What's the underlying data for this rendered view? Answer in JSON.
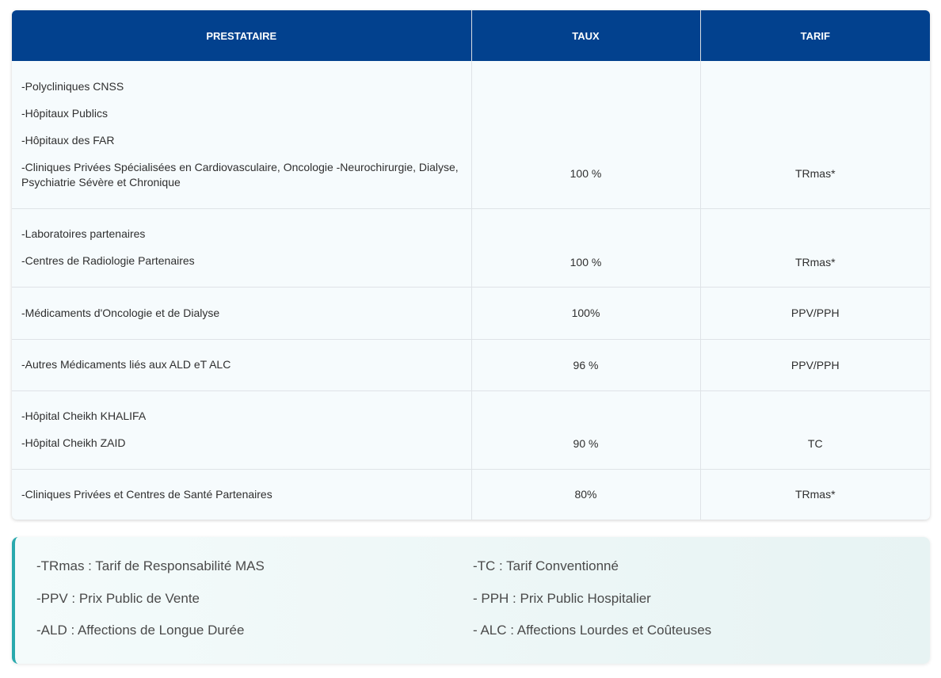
{
  "table": {
    "headers": [
      "PRESTATAIRE",
      "TAUX",
      "TARIF"
    ],
    "rows": [
      {
        "providers": [
          "-Polycliniques CNSS",
          "-Hôpitaux Publics",
          "-Hôpitaux des FAR",
          "-Cliniques Privées Spécialisées en Cardiovasculaire, Oncologie -Neurochirurgie, Dialyse, Psychiatrie Sévère et Chronique"
        ],
        "taux": "100 %",
        "tarif": "TRmas*"
      },
      {
        "providers": [
          "-Laboratoires partenaires",
          "-Centres de Radiologie Partenaires"
        ],
        "taux": "100 %",
        "tarif": "TRmas*"
      },
      {
        "providers": [
          "-Médicaments d'Oncologie et de Dialyse"
        ],
        "taux": "100%",
        "tarif": "PPV/PPH"
      },
      {
        "providers": [
          "-Autres Médicaments liés aux ALD eT ALC"
        ],
        "taux": "96 %",
        "tarif": "PPV/PPH"
      },
      {
        "providers": [
          "-Hôpital Cheikh KHALIFA",
          "-Hôpital Cheikh ZAID"
        ],
        "taux": "90 %",
        "tarif": "TC"
      },
      {
        "providers": [
          "-Cliniques Privées et Centres de Santé Partenaires"
        ],
        "taux": "80%",
        "tarif": "TRmas*"
      }
    ]
  },
  "legend": {
    "items": [
      "-TRmas : Tarif de Responsabilité MAS",
      "-TC : Tarif Conventionné",
      "-PPV : Prix Public de Vente",
      "- PPH : Prix Public Hospitalier",
      "-ALD : Affections de Longue Durée",
      "- ALC : Affections Lourdes et Coûteuses"
    ]
  },
  "colors": {
    "header_bg": "#02418e",
    "header_text": "#ffffff",
    "row_bg": "#f6fbfd",
    "legend_accent": "#29a9ad"
  }
}
